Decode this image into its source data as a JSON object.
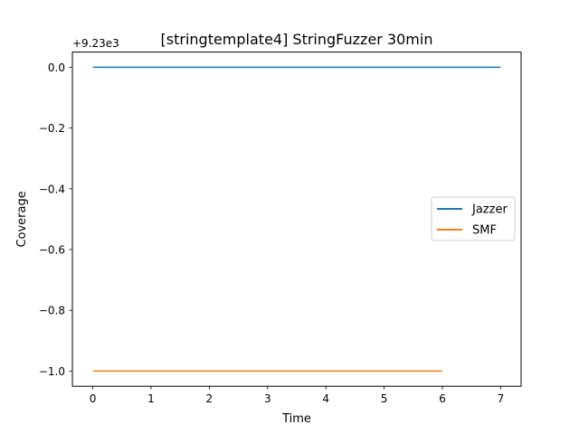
{
  "chart_data": {
    "type": "line",
    "title": "[stringtemplate4] StringFuzzer 30min",
    "xlabel": "Time",
    "ylabel": "Coverage",
    "offset_text": "+9.23e3",
    "xlim": [
      -0.35,
      7.35
    ],
    "ylim": [
      -1.05,
      0.05
    ],
    "x_ticks": [
      0,
      1,
      2,
      3,
      4,
      5,
      6,
      7
    ],
    "x_tick_labels": [
      "0",
      "1",
      "2",
      "3",
      "4",
      "5",
      "6",
      "7"
    ],
    "y_ticks": [
      0.0,
      -0.2,
      -0.4,
      -0.6,
      -0.8,
      -1.0
    ],
    "y_tick_labels": [
      "0.0",
      "−0.2",
      "−0.4",
      "−0.6",
      "−0.8",
      "−1.0"
    ],
    "grid": false,
    "legend_position": "center-right",
    "series": [
      {
        "name": "Jazzer",
        "color": "#1f77b4",
        "x": [
          0,
          1,
          2,
          3,
          4,
          5,
          6,
          7
        ],
        "y": [
          0,
          0,
          0,
          0,
          0,
          0,
          0,
          0
        ]
      },
      {
        "name": "SMF",
        "color": "#ff7f0e",
        "x": [
          0,
          1,
          2,
          3,
          4,
          5,
          6
        ],
        "y": [
          -1,
          -1,
          -1,
          -1,
          -1,
          -1,
          -1
        ]
      }
    ]
  }
}
